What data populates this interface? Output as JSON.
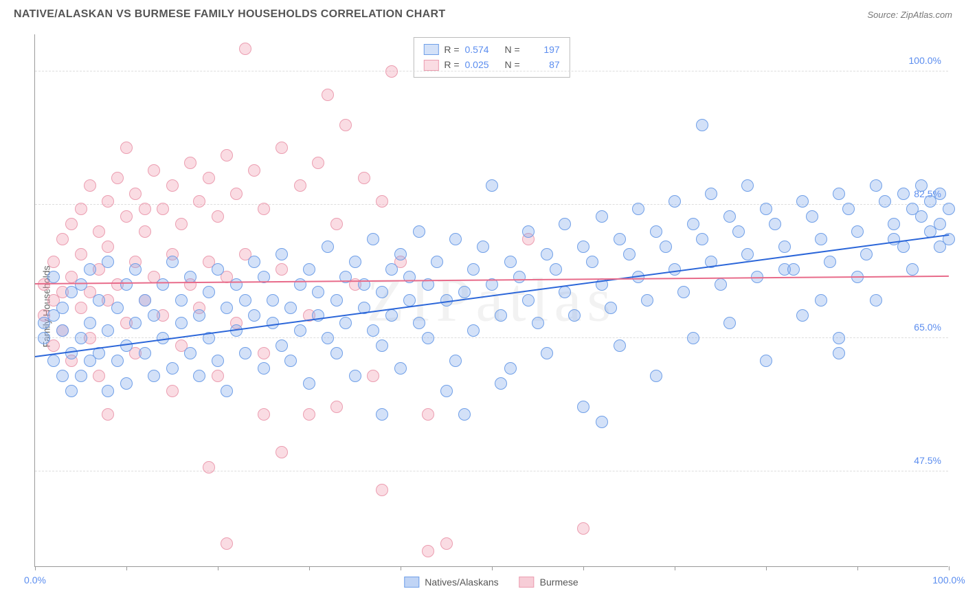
{
  "header": {
    "title": "NATIVE/ALASKAN VS BURMESE FAMILY HOUSEHOLDS CORRELATION CHART",
    "source": "Source: ZipAtlas.com"
  },
  "chart": {
    "type": "scatter",
    "ylabel": "Family Households",
    "xlim": [
      0,
      100
    ],
    "ylim": [
      35,
      105
    ],
    "y_ticks": [
      47.5,
      65.0,
      82.5,
      100.0
    ],
    "y_tick_labels": [
      "47.5%",
      "65.0%",
      "82.5%",
      "100.0%"
    ],
    "x_ticks": [
      0,
      10,
      20,
      30,
      40,
      50,
      60,
      70,
      80,
      90,
      100
    ],
    "x_tick_labels_shown": {
      "0": "0.0%",
      "100": "100.0%"
    },
    "background_color": "#ffffff",
    "grid_color": "#dddddd",
    "border_color": "#999999",
    "marker_radius": 9,
    "marker_border_width": 1.5,
    "marker_fill_opacity": 0.35,
    "watermark": "ZIPatlas",
    "series": [
      {
        "name": "Natives/Alaskans",
        "color": "#5b8def",
        "fill": "rgba(130,170,235,0.35)",
        "stroke": "#6f9fe8",
        "R": "0.574",
        "N": "197",
        "trend": {
          "x1": 0,
          "y1": 62.5,
          "x2": 100,
          "y2": 78.5,
          "color": "#2b66d9",
          "width": 2
        },
        "points": [
          [
            1,
            67
          ],
          [
            1,
            65
          ],
          [
            2,
            62
          ],
          [
            2,
            68
          ],
          [
            2,
            73
          ],
          [
            3,
            60
          ],
          [
            3,
            66
          ],
          [
            3,
            69
          ],
          [
            4,
            63
          ],
          [
            4,
            71
          ],
          [
            4,
            58
          ],
          [
            5,
            65
          ],
          [
            5,
            72
          ],
          [
            5,
            60
          ],
          [
            6,
            67
          ],
          [
            6,
            62
          ],
          [
            6,
            74
          ],
          [
            7,
            63
          ],
          [
            7,
            70
          ],
          [
            8,
            66
          ],
          [
            8,
            58
          ],
          [
            8,
            75
          ],
          [
            9,
            62
          ],
          [
            9,
            69
          ],
          [
            10,
            72
          ],
          [
            10,
            64
          ],
          [
            10,
            59
          ],
          [
            11,
            67
          ],
          [
            11,
            74
          ],
          [
            12,
            63
          ],
          [
            12,
            70
          ],
          [
            13,
            60
          ],
          [
            13,
            68
          ],
          [
            14,
            72
          ],
          [
            14,
            65
          ],
          [
            15,
            61
          ],
          [
            15,
            75
          ],
          [
            16,
            67
          ],
          [
            16,
            70
          ],
          [
            17,
            63
          ],
          [
            17,
            73
          ],
          [
            18,
            68
          ],
          [
            18,
            60
          ],
          [
            19,
            71
          ],
          [
            19,
            65
          ],
          [
            20,
            74
          ],
          [
            20,
            62
          ],
          [
            21,
            69
          ],
          [
            21,
            58
          ],
          [
            22,
            72
          ],
          [
            22,
            66
          ],
          [
            23,
            70
          ],
          [
            23,
            63
          ],
          [
            24,
            75
          ],
          [
            24,
            68
          ],
          [
            25,
            61
          ],
          [
            25,
            73
          ],
          [
            26,
            67
          ],
          [
            26,
            70
          ],
          [
            27,
            64
          ],
          [
            27,
            76
          ],
          [
            28,
            69
          ],
          [
            28,
            62
          ],
          [
            29,
            72
          ],
          [
            29,
            66
          ],
          [
            30,
            74
          ],
          [
            30,
            59
          ],
          [
            31,
            68
          ],
          [
            31,
            71
          ],
          [
            32,
            65
          ],
          [
            32,
            77
          ],
          [
            33,
            70
          ],
          [
            33,
            63
          ],
          [
            34,
            73
          ],
          [
            34,
            67
          ],
          [
            35,
            75
          ],
          [
            35,
            60
          ],
          [
            36,
            69
          ],
          [
            36,
            72
          ],
          [
            37,
            66
          ],
          [
            37,
            78
          ],
          [
            38,
            71
          ],
          [
            38,
            64
          ],
          [
            39,
            74
          ],
          [
            39,
            68
          ],
          [
            40,
            76
          ],
          [
            40,
            61
          ],
          [
            41,
            70
          ],
          [
            41,
            73
          ],
          [
            42,
            67
          ],
          [
            42,
            79
          ],
          [
            43,
            72
          ],
          [
            43,
            65
          ],
          [
            44,
            75
          ],
          [
            45,
            70
          ],
          [
            45,
            58
          ],
          [
            46,
            78
          ],
          [
            46,
            62
          ],
          [
            47,
            71
          ],
          [
            48,
            74
          ],
          [
            48,
            66
          ],
          [
            49,
            77
          ],
          [
            50,
            72
          ],
          [
            50,
            85
          ],
          [
            51,
            68
          ],
          [
            52,
            75
          ],
          [
            52,
            61
          ],
          [
            53,
            73
          ],
          [
            54,
            70
          ],
          [
            54,
            79
          ],
          [
            55,
            67
          ],
          [
            56,
            76
          ],
          [
            56,
            63
          ],
          [
            57,
            74
          ],
          [
            58,
            71
          ],
          [
            58,
            80
          ],
          [
            59,
            68
          ],
          [
            60,
            77
          ],
          [
            60,
            56
          ],
          [
            61,
            75
          ],
          [
            62,
            72
          ],
          [
            62,
            81
          ],
          [
            63,
            69
          ],
          [
            64,
            78
          ],
          [
            64,
            64
          ],
          [
            65,
            76
          ],
          [
            66,
            73
          ],
          [
            66,
            82
          ],
          [
            67,
            70
          ],
          [
            68,
            79
          ],
          [
            68,
            60
          ],
          [
            69,
            77
          ],
          [
            70,
            74
          ],
          [
            70,
            83
          ],
          [
            71,
            71
          ],
          [
            72,
            80
          ],
          [
            72,
            65
          ],
          [
            73,
            78
          ],
          [
            73,
            93
          ],
          [
            74,
            75
          ],
          [
            74,
            84
          ],
          [
            75,
            72
          ],
          [
            76,
            81
          ],
          [
            76,
            67
          ],
          [
            77,
            79
          ],
          [
            78,
            76
          ],
          [
            78,
            85
          ],
          [
            79,
            73
          ],
          [
            80,
            82
          ],
          [
            80,
            62
          ],
          [
            81,
            80
          ],
          [
            82,
            77
          ],
          [
            82,
            74
          ],
          [
            83,
            74
          ],
          [
            84,
            83
          ],
          [
            84,
            68
          ],
          [
            85,
            81
          ],
          [
            86,
            78
          ],
          [
            86,
            70
          ],
          [
            87,
            75
          ],
          [
            88,
            84
          ],
          [
            88,
            65
          ],
          [
            89,
            82
          ],
          [
            90,
            79
          ],
          [
            90,
            73
          ],
          [
            91,
            76
          ],
          [
            92,
            85
          ],
          [
            92,
            70
          ],
          [
            93,
            83
          ],
          [
            94,
            80
          ],
          [
            94,
            78
          ],
          [
            95,
            77
          ],
          [
            95,
            84
          ],
          [
            96,
            82
          ],
          [
            96,
            74
          ],
          [
            97,
            81
          ],
          [
            97,
            85
          ],
          [
            98,
            79
          ],
          [
            98,
            83
          ],
          [
            99,
            80
          ],
          [
            99,
            77
          ],
          [
            99,
            84
          ],
          [
            100,
            82
          ],
          [
            100,
            78
          ],
          [
            62,
            54
          ],
          [
            47,
            55
          ],
          [
            51,
            59
          ],
          [
            38,
            55
          ],
          [
            88,
            63
          ]
        ]
      },
      {
        "name": "Burmese",
        "color": "#f08fa5",
        "fill": "rgba(240,155,175,0.35)",
        "stroke": "#eb9db0",
        "R": "0.025",
        "N": "87",
        "trend": {
          "x1": 0,
          "y1": 72.0,
          "x2": 100,
          "y2": 73.0,
          "color": "#e86b8a",
          "width": 2
        },
        "points": [
          [
            1,
            72
          ],
          [
            1,
            68
          ],
          [
            2,
            75
          ],
          [
            2,
            70
          ],
          [
            2,
            64
          ],
          [
            3,
            78
          ],
          [
            3,
            71
          ],
          [
            3,
            66
          ],
          [
            4,
            80
          ],
          [
            4,
            73
          ],
          [
            4,
            62
          ],
          [
            5,
            82
          ],
          [
            5,
            69
          ],
          [
            5,
            76
          ],
          [
            6,
            85
          ],
          [
            6,
            71
          ],
          [
            6,
            65
          ],
          [
            7,
            79
          ],
          [
            7,
            74
          ],
          [
            7,
            60
          ],
          [
            8,
            83
          ],
          [
            8,
            70
          ],
          [
            8,
            77
          ],
          [
            9,
            86
          ],
          [
            9,
            72
          ],
          [
            10,
            81
          ],
          [
            10,
            67
          ],
          [
            11,
            84
          ],
          [
            11,
            75
          ],
          [
            11,
            63
          ],
          [
            12,
            79
          ],
          [
            12,
            70
          ],
          [
            13,
            87
          ],
          [
            13,
            73
          ],
          [
            14,
            82
          ],
          [
            14,
            68
          ],
          [
            15,
            85
          ],
          [
            15,
            76
          ],
          [
            16,
            80
          ],
          [
            16,
            64
          ],
          [
            17,
            88
          ],
          [
            17,
            72
          ],
          [
            18,
            83
          ],
          [
            18,
            69
          ],
          [
            19,
            86
          ],
          [
            19,
            75
          ],
          [
            20,
            81
          ],
          [
            20,
            60
          ],
          [
            21,
            89
          ],
          [
            21,
            73
          ],
          [
            22,
            84
          ],
          [
            22,
            67
          ],
          [
            23,
            103
          ],
          [
            23,
            76
          ],
          [
            24,
            87
          ],
          [
            25,
            82
          ],
          [
            25,
            63
          ],
          [
            27,
            90
          ],
          [
            27,
            74
          ],
          [
            29,
            85
          ],
          [
            30,
            68
          ],
          [
            31,
            88
          ],
          [
            32,
            97
          ],
          [
            33,
            80
          ],
          [
            34,
            93
          ],
          [
            35,
            72
          ],
          [
            36,
            86
          ],
          [
            37,
            60
          ],
          [
            38,
            83
          ],
          [
            39,
            100
          ],
          [
            40,
            75
          ],
          [
            19,
            48
          ],
          [
            21,
            38
          ],
          [
            27,
            50
          ],
          [
            38,
            45
          ],
          [
            43,
            55
          ],
          [
            45,
            38
          ],
          [
            43,
            37
          ],
          [
            54,
            78
          ],
          [
            60,
            40
          ],
          [
            33,
            56
          ],
          [
            30,
            55
          ],
          [
            15,
            58
          ],
          [
            8,
            55
          ],
          [
            25,
            55
          ],
          [
            12,
            82
          ],
          [
            10,
            90
          ]
        ]
      }
    ],
    "legend_bottom": [
      {
        "label": "Natives/Alaskans",
        "fill": "rgba(130,170,235,0.5)",
        "stroke": "#6f9fe8"
      },
      {
        "label": "Burmese",
        "fill": "rgba(240,155,175,0.5)",
        "stroke": "#eb9db0"
      }
    ]
  }
}
